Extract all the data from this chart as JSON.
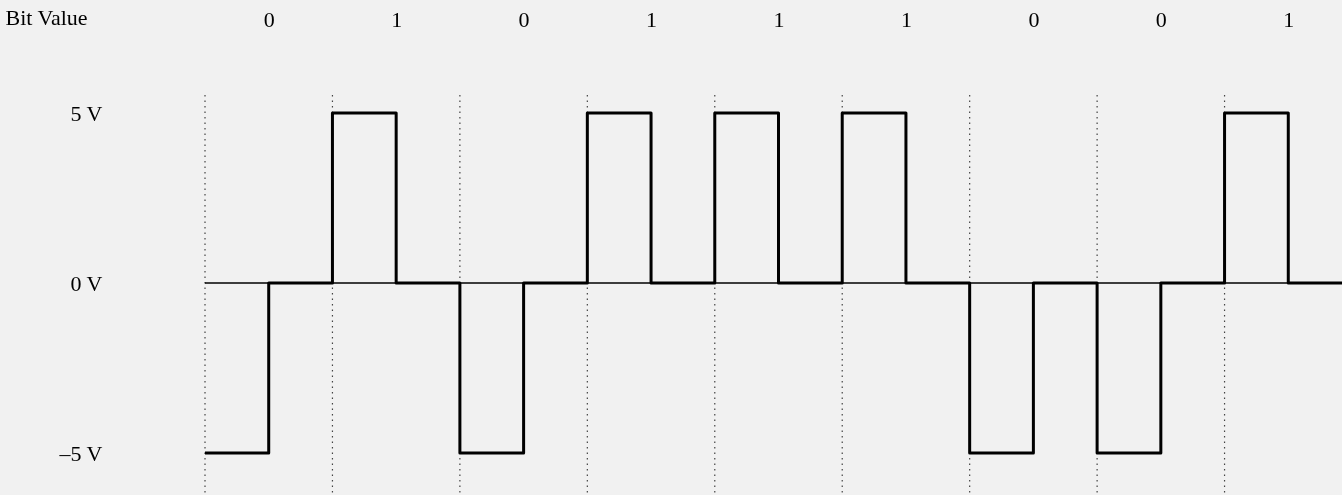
{
  "chart_data": {
    "type": "step",
    "xlabel": "Bit Value",
    "categories": [
      null,
      "0",
      null,
      "1",
      null,
      "0",
      null,
      "1",
      null,
      "1",
      null,
      "1",
      null,
      "0",
      null,
      "0",
      null,
      "1",
      null
    ],
    "series": [
      {
        "color": "#000000",
        "values": [
          -5,
          0,
          5,
          0,
          -5,
          0,
          5,
          0,
          5,
          0,
          5,
          0,
          -5,
          0,
          -5,
          0,
          5,
          0,
          0
        ]
      }
    ],
    "ylim": [
      -5,
      5
    ],
    "yticks": [
      {
        "value": 5,
        "label": "5 V"
      },
      {
        "value": 0,
        "label": "0 V"
      },
      {
        "value": -5,
        "label": "–5 V"
      }
    ],
    "ref_lines": [
      {
        "axis": "y",
        "value": 0,
        "color": "#000000",
        "line_style": "solid"
      }
    ],
    "grid": "x",
    "line_style": "solid"
  }
}
